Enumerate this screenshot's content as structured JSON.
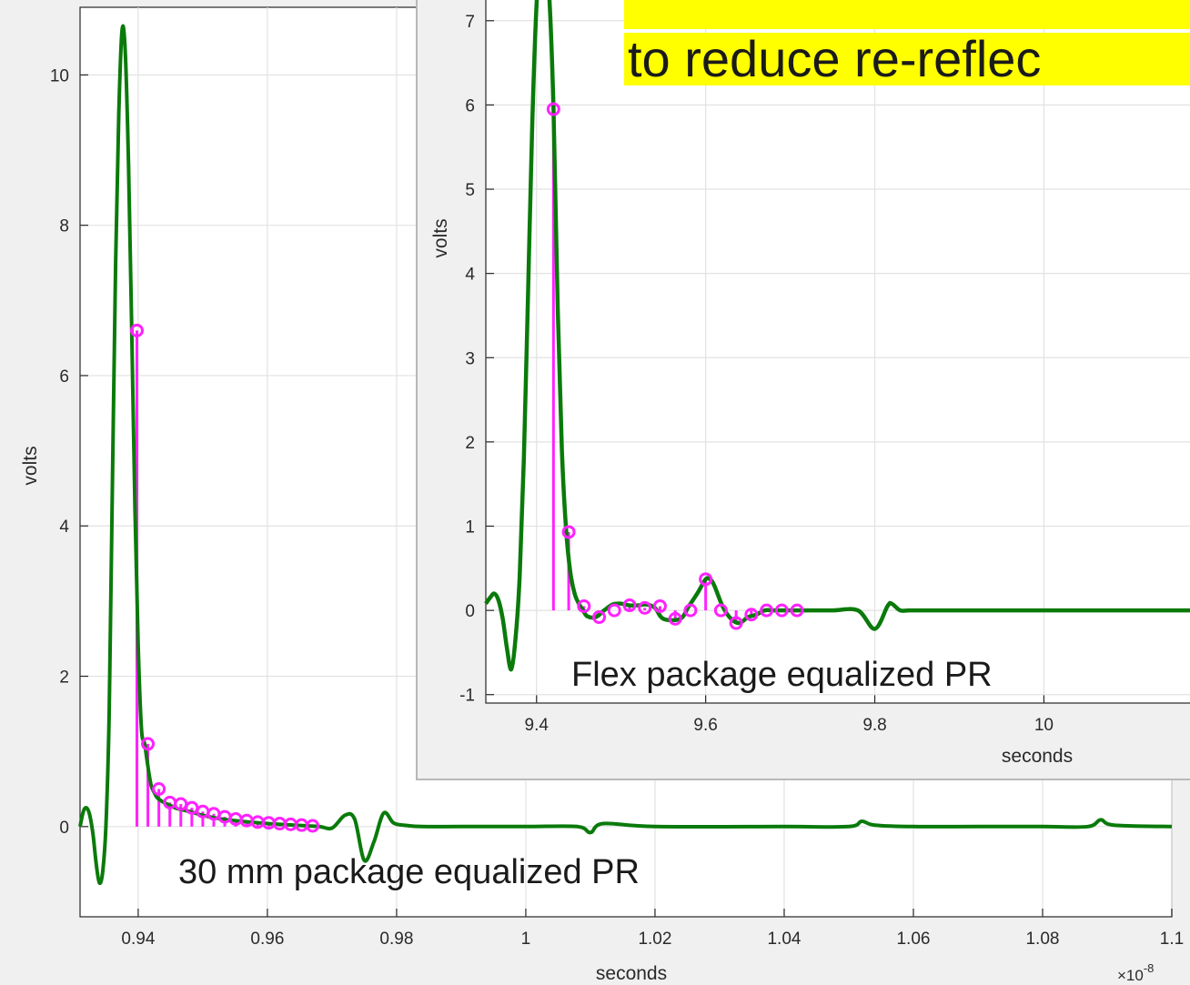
{
  "chart_data": [
    {
      "type": "line",
      "ylabel": "volts",
      "xlabel": "seconds",
      "x_exponent_label": "×10",
      "x_exponent_power": "-8",
      "xlim": [
        0.931,
        1.1
      ],
      "ylim": [
        -1.2,
        10.9
      ],
      "x_ticks": [
        "0.94",
        "0.96",
        "0.98",
        "1",
        "1.02",
        "1.04",
        "1.06",
        "1.08",
        "1.1"
      ],
      "y_ticks": [
        "0",
        "2",
        "4",
        "6",
        "8",
        "10"
      ],
      "annotation": "30 mm package equalized PR",
      "line_color": "#0a7a0a",
      "stem_color": "#ff22ff",
      "waveform": {
        "x": [
          0.931,
          0.9315,
          0.932,
          0.9325,
          0.933,
          0.9335,
          0.934,
          0.9345,
          0.935,
          0.9355,
          0.936,
          0.9365,
          0.937,
          0.9375,
          0.938,
          0.9385,
          0.939,
          0.9395,
          0.94,
          0.9405,
          0.941,
          0.9415,
          0.942,
          0.9425,
          0.943,
          0.944,
          0.945,
          0.946,
          0.948,
          0.95,
          0.953,
          0.956,
          0.96,
          0.964,
          0.968,
          0.97,
          0.972,
          0.9735,
          0.975,
          0.9765,
          0.978,
          0.9795,
          0.981,
          0.984,
          0.99,
          1.0,
          1.008,
          1.01,
          1.012,
          1.02,
          1.04,
          1.05,
          1.052,
          1.054,
          1.06,
          1.07,
          1.08,
          1.087,
          1.089,
          1.091,
          1.1
        ],
        "y": [
          0,
          0.2,
          0.25,
          0.15,
          -0.1,
          -0.5,
          -0.75,
          -0.6,
          0.0,
          1.5,
          4.5,
          7.5,
          9.5,
          10.6,
          10.3,
          8.8,
          6.6,
          4.2,
          2.4,
          1.3,
          1.1,
          0.8,
          0.55,
          0.45,
          0.38,
          0.32,
          0.28,
          0.24,
          0.2,
          0.15,
          0.1,
          0.07,
          0.04,
          0.02,
          0.0,
          -0.02,
          0.15,
          0.1,
          -0.45,
          -0.2,
          0.18,
          0.05,
          0.02,
          0.0,
          0.0,
          0.0,
          0.0,
          -0.08,
          0.04,
          0.0,
          0.0,
          0.0,
          0.07,
          0.02,
          0.0,
          0.0,
          0.0,
          0.0,
          0.09,
          0.02,
          0.0
        ]
      },
      "samples": {
        "x": [
          0.9398,
          0.9415,
          0.9432,
          0.9449,
          0.9466,
          0.9483,
          0.95,
          0.9517,
          0.9534,
          0.9551,
          0.9568,
          0.9585,
          0.9602,
          0.9619,
          0.9636,
          0.9653,
          0.967
        ],
        "y": [
          6.6,
          1.1,
          0.5,
          0.32,
          0.3,
          0.25,
          0.2,
          0.17,
          0.13,
          0.1,
          0.08,
          0.06,
          0.05,
          0.04,
          0.03,
          0.02,
          0.01
        ]
      }
    },
    {
      "type": "line",
      "ylabel": "volts",
      "xlabel": "seconds",
      "xlim": [
        9.34,
        10.19
      ],
      "ylim": [
        -1.1,
        7.3
      ],
      "x_ticks": [
        "9.4",
        "9.6",
        "9.8",
        "10"
      ],
      "y_ticks": [
        "-1",
        "0",
        "1",
        "2",
        "3",
        "4",
        "5",
        "6",
        "7"
      ],
      "annotation": "Flex package equalized PR",
      "headline_lines": [
        "",
        "to reduce re-reflec"
      ],
      "headline_bg": "#ffff00",
      "line_color": "#0a7a0a",
      "stem_color": "#ff22ff",
      "waveform": {
        "x": [
          9.34,
          9.345,
          9.35,
          9.355,
          9.36,
          9.365,
          9.37,
          9.375,
          9.38,
          9.385,
          9.39,
          9.395,
          9.4,
          9.405,
          9.41,
          9.415,
          9.42,
          9.425,
          9.43,
          9.435,
          9.44,
          9.445,
          9.45,
          9.455,
          9.46,
          9.47,
          9.48,
          9.49,
          9.5,
          9.51,
          9.52,
          9.53,
          9.54,
          9.55,
          9.57,
          9.58,
          9.59,
          9.6,
          9.605,
          9.61,
          9.62,
          9.63,
          9.64,
          9.65,
          9.66,
          9.67,
          9.68,
          9.7,
          9.72,
          9.75,
          9.78,
          9.8,
          9.815,
          9.82,
          9.83,
          9.84,
          9.85,
          9.88,
          9.92,
          10.0,
          10.08,
          10.19
        ],
        "y": [
          0.08,
          0.15,
          0.2,
          0.12,
          -0.1,
          -0.45,
          -0.7,
          -0.35,
          0.4,
          1.8,
          3.8,
          5.8,
          7.2,
          7.8,
          7.8,
          7.3,
          5.95,
          3.6,
          1.9,
          0.95,
          0.45,
          0.2,
          0.08,
          0.0,
          -0.07,
          -0.08,
          0.0,
          0.07,
          0.08,
          0.06,
          0.06,
          0.07,
          0.03,
          -0.1,
          -0.1,
          0.05,
          0.2,
          0.37,
          0.37,
          0.3,
          0.05,
          -0.1,
          -0.15,
          -0.08,
          -0.05,
          0.0,
          0.0,
          0.0,
          0.0,
          0.0,
          0.0,
          -0.22,
          0.05,
          0.08,
          0.0,
          0.0,
          0.0,
          0.0,
          0.0,
          0.0,
          0.0,
          0.0
        ]
      },
      "samples": {
        "x": [
          9.42,
          9.438,
          9.456,
          9.474,
          9.492,
          9.51,
          9.528,
          9.546,
          9.564,
          9.582,
          9.6,
          9.618,
          9.636,
          9.654,
          9.672,
          9.69,
          9.708
        ],
        "y": [
          5.95,
          0.93,
          0.05,
          -0.08,
          0.0,
          0.06,
          0.03,
          0.05,
          -0.1,
          0.0,
          0.37,
          0.0,
          -0.15,
          -0.05,
          0.0,
          0.0,
          0.0
        ]
      }
    }
  ]
}
